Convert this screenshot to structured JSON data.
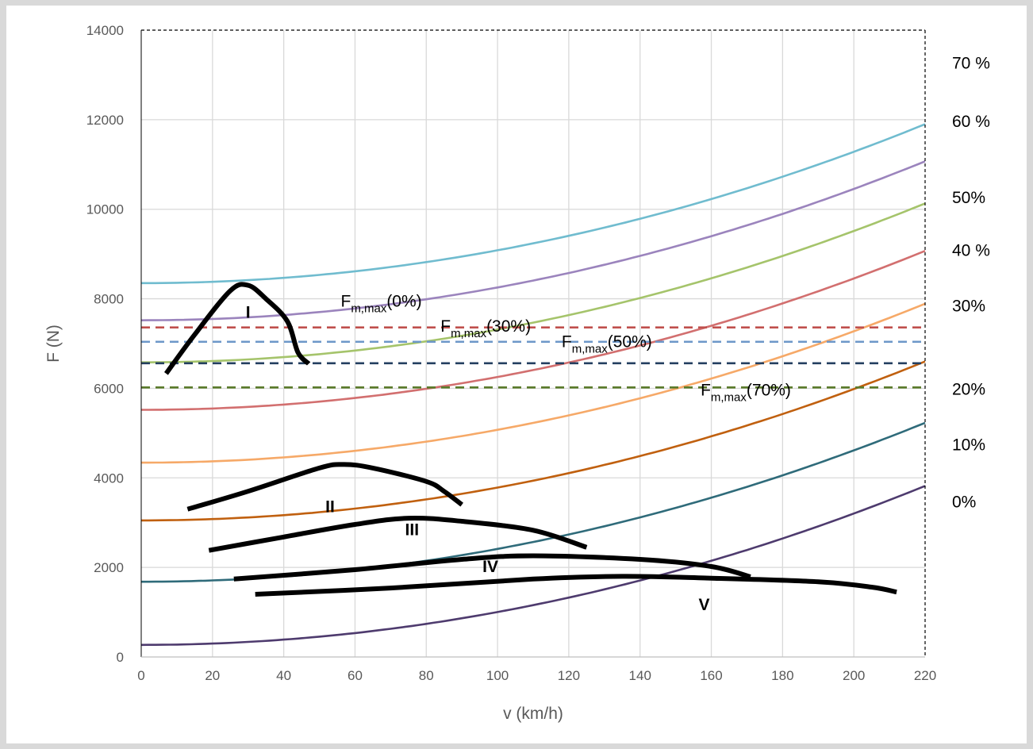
{
  "chart_data": {
    "type": "line",
    "xlabel": "v (km/h)",
    "ylabel": "F (N)",
    "xlim": [
      0,
      220
    ],
    "ylim": [
      0,
      14000
    ],
    "x_ticks": [
      "0",
      "20",
      "40",
      "60",
      "80",
      "100",
      "120",
      "140",
      "160",
      "180",
      "200",
      "220"
    ],
    "y_ticks": [
      "0",
      "2000",
      "4000",
      "6000",
      "8000",
      "10000",
      "12000",
      "14000"
    ],
    "grid": true,
    "resistance_curves": [
      {
        "label": "0%",
        "color": "#4e3b6e",
        "f0": 270,
        "f220": 3820
      },
      {
        "label": "10%",
        "color": "#2f6b7a",
        "f0": 1680,
        "f220": 5230
      },
      {
        "label": "20%",
        "color": "#c0600f",
        "f0": 3050,
        "f220": 6600
      },
      {
        "label": "30%",
        "color": "#f6a968",
        "f0": 4340,
        "f220": 7890
      },
      {
        "label": "40 %",
        "color": "#d26f6f",
        "f0": 5520,
        "f220": 9070
      },
      {
        "label": "50%",
        "color": "#a5c46b",
        "f0": 6580,
        "f220": 10130
      },
      {
        "label": "60 %",
        "color": "#9b84bd",
        "f0": 7520,
        "f220": 11070
      },
      {
        "label": "70 %",
        "color": "#70bccf",
        "f0": 8350,
        "f220": 11900
      }
    ],
    "adhesion_limits": [
      {
        "name": "Fm,max(0%)",
        "value": 7360,
        "color": "#c0504d"
      },
      {
        "name": "Fm,max(30%)",
        "value": 7040,
        "color": "#6d97c9"
      },
      {
        "name": "Fm,max(50%)",
        "value": 6560,
        "color": "#243f60"
      },
      {
        "name": "Fm,max(70%)",
        "value": 6020,
        "color": "#5a7a2a"
      }
    ],
    "annotations": [
      {
        "main": "F",
        "sub": "m,max",
        "suffix": "(0%)",
        "x": 56,
        "y": 7820
      },
      {
        "main": "F",
        "sub": "m,max",
        "suffix": "(30%)",
        "x": 84,
        "y": 7270
      },
      {
        "main": "F",
        "sub": "m,max",
        "suffix": "(50%)",
        "x": 118,
        "y": 6920
      },
      {
        "main": "F",
        "sub": "m,max",
        "suffix": "(70%)",
        "x": 157,
        "y": 5840
      }
    ],
    "traction_curves": [
      {
        "label": "I",
        "label_x": 30,
        "label_y": 7580,
        "points": [
          [
            7,
            6330
          ],
          [
            15,
            7200
          ],
          [
            25,
            8180
          ],
          [
            30,
            8300
          ],
          [
            35,
            8000
          ],
          [
            41,
            7500
          ],
          [
            44,
            6800
          ],
          [
            47,
            6550
          ]
        ]
      },
      {
        "label": "II",
        "label_x": 53,
        "label_y": 3230,
        "points": [
          [
            13,
            3300
          ],
          [
            30,
            3700
          ],
          [
            50,
            4220
          ],
          [
            57,
            4300
          ],
          [
            65,
            4220
          ],
          [
            80,
            3920
          ],
          [
            85,
            3700
          ],
          [
            90,
            3400
          ]
        ]
      },
      {
        "label": "III",
        "label_x": 76,
        "label_y": 2720,
        "points": [
          [
            19,
            2380
          ],
          [
            40,
            2680
          ],
          [
            60,
            2960
          ],
          [
            75,
            3100
          ],
          [
            90,
            3030
          ],
          [
            110,
            2830
          ],
          [
            125,
            2450
          ]
        ]
      },
      {
        "label": "IV",
        "label_x": 98,
        "label_y": 1900,
        "points": [
          [
            26,
            1740
          ],
          [
            60,
            1950
          ],
          [
            90,
            2180
          ],
          [
            110,
            2260
          ],
          [
            140,
            2180
          ],
          [
            160,
            2020
          ],
          [
            171,
            1790
          ]
        ]
      },
      {
        "label": "V",
        "label_x": 158,
        "label_y": 1050,
        "points": [
          [
            32,
            1400
          ],
          [
            70,
            1540
          ],
          [
            110,
            1740
          ],
          [
            135,
            1800
          ],
          [
            160,
            1760
          ],
          [
            190,
            1680
          ],
          [
            205,
            1560
          ],
          [
            212,
            1450
          ]
        ]
      }
    ],
    "percent_labels": [
      {
        "text": "70 %",
        "y": 13280
      },
      {
        "text": "60 %",
        "y": 11980
      },
      {
        "text": "50%",
        "y": 10280
      },
      {
        "text": "40 %",
        "y": 9100
      },
      {
        "text": "30%",
        "y": 7860
      },
      {
        "text": "20%",
        "y": 6000
      },
      {
        "text": "10%",
        "y": 4760
      },
      {
        "text": "0%",
        "y": 3480
      }
    ]
  }
}
